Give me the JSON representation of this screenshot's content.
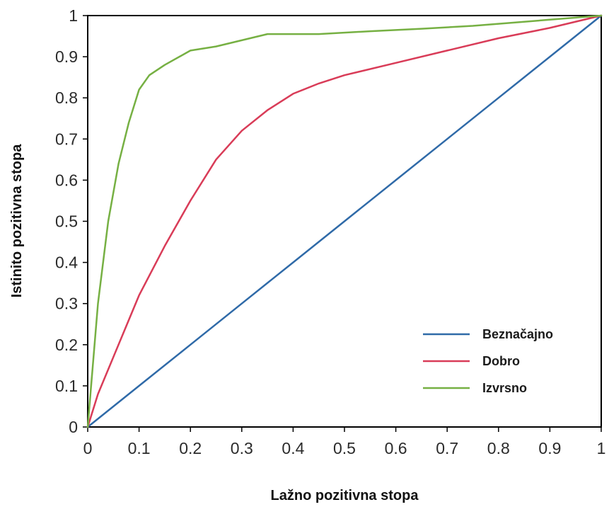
{
  "chart_data": {
    "type": "line",
    "title": "",
    "xlabel": "Lažno pozitivna stopa",
    "ylabel": "Istinito pozitivna stopa",
    "xlim": [
      0,
      1
    ],
    "ylim": [
      0,
      1
    ],
    "grid": false,
    "legend_position": "bottom-right",
    "x_ticks": [
      "0",
      "0.1",
      "0.2",
      "0.3",
      "0.4",
      "0.5",
      "0.6",
      "0.7",
      "0.8",
      "0.9",
      "1"
    ],
    "y_ticks": [
      "0",
      "0.1",
      "0.2",
      "0.3",
      "0.4",
      "0.5",
      "0.6",
      "0.7",
      "0.8",
      "0.9",
      "1"
    ],
    "series": [
      {
        "name": "Beznačajno",
        "color": "#2f6aa8",
        "x": [
          0,
          0.1,
          0.2,
          0.3,
          0.4,
          0.5,
          0.6,
          0.7,
          0.8,
          0.9,
          1
        ],
        "y": [
          0,
          0.1,
          0.2,
          0.3,
          0.4,
          0.5,
          0.6,
          0.7,
          0.8,
          0.9,
          1
        ]
      },
      {
        "name": "Dobro",
        "color": "#d93c58",
        "x": [
          0,
          0.02,
          0.05,
          0.08,
          0.1,
          0.15,
          0.2,
          0.25,
          0.3,
          0.35,
          0.4,
          0.45,
          0.5,
          0.6,
          0.7,
          0.8,
          0.9,
          1
        ],
        "y": [
          0,
          0.08,
          0.17,
          0.26,
          0.32,
          0.44,
          0.55,
          0.65,
          0.72,
          0.77,
          0.81,
          0.835,
          0.855,
          0.885,
          0.915,
          0.945,
          0.97,
          1
        ]
      },
      {
        "name": "Izvrsno",
        "color": "#76b043",
        "x": [
          0,
          0.02,
          0.04,
          0.06,
          0.08,
          0.1,
          0.12,
          0.15,
          0.2,
          0.25,
          0.3,
          0.35,
          0.45,
          0.55,
          0.65,
          0.75,
          0.85,
          0.95,
          1
        ],
        "y": [
          0,
          0.3,
          0.5,
          0.64,
          0.74,
          0.82,
          0.855,
          0.88,
          0.915,
          0.925,
          0.94,
          0.955,
          0.955,
          0.962,
          0.968,
          0.975,
          0.985,
          0.995,
          1
        ]
      }
    ]
  }
}
